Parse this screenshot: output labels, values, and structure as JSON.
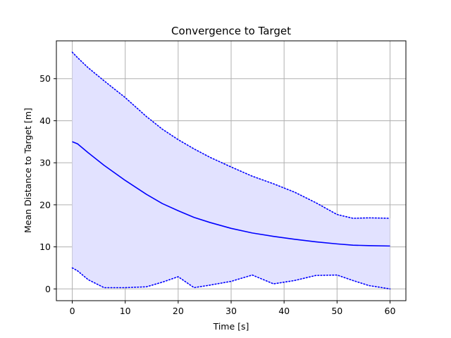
{
  "chart_data": {
    "type": "line",
    "title": "Convergence to Target",
    "xlabel": "Time [s]",
    "ylabel": "Mean Distance to Target [m]",
    "xlim": [
      -3,
      63
    ],
    "ylim": [
      -2.8,
      59
    ],
    "xticks": [
      0,
      10,
      20,
      30,
      40,
      50,
      60
    ],
    "yticks": [
      0,
      10,
      20,
      30,
      40,
      50
    ],
    "grid": true,
    "legend": "none",
    "colors": {
      "line": "#0000ff",
      "fill": "#e2e2ff",
      "grid": "#b0b0b0"
    },
    "x": [
      0,
      1,
      3,
      6,
      10,
      14,
      17,
      20,
      23,
      26,
      30,
      34,
      38,
      42,
      46,
      50,
      53,
      56,
      60
    ],
    "series": [
      {
        "role": "mean",
        "style": "solid",
        "values": [
          35.0,
          34.5,
          32.4,
          29.4,
          25.8,
          22.5,
          20.3,
          18.6,
          17.0,
          15.8,
          14.4,
          13.3,
          12.5,
          11.8,
          11.2,
          10.7,
          10.4,
          10.3,
          10.2
        ]
      },
      {
        "role": "upper",
        "style": "dotted",
        "values": [
          56.3,
          55.0,
          52.6,
          49.5,
          45.5,
          41.0,
          38.0,
          35.5,
          33.3,
          31.3,
          29.0,
          26.8,
          25.0,
          23.0,
          20.5,
          17.7,
          16.8,
          16.9,
          16.8
        ]
      },
      {
        "role": "lower",
        "style": "dotted",
        "values": [
          5.0,
          4.3,
          2.2,
          0.3,
          0.3,
          0.5,
          1.6,
          2.9,
          0.3,
          0.9,
          1.8,
          3.3,
          1.2,
          2.0,
          3.2,
          3.3,
          2.0,
          0.8,
          0.0
        ]
      }
    ]
  }
}
